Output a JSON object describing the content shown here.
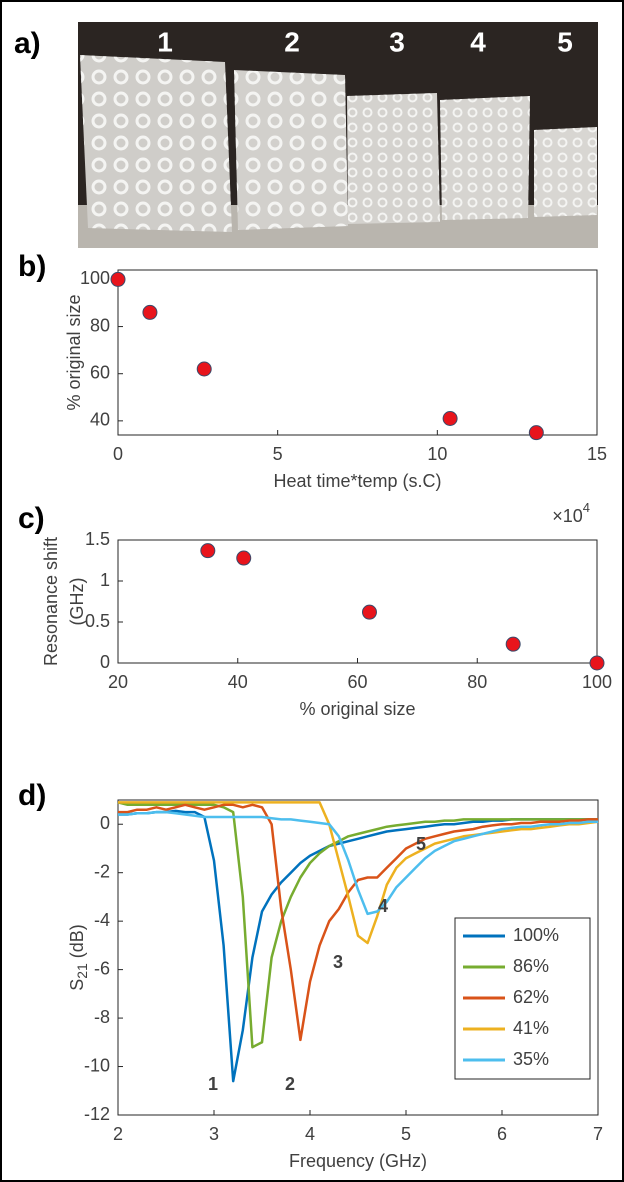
{
  "panel_labels": [
    "a)",
    "b)",
    "c)",
    "d)"
  ],
  "photo_labels": [
    "1",
    "2",
    "3",
    "4",
    "5"
  ],
  "chart_data": [
    {
      "type": "scatter",
      "xlabel": "Heat time*temp (s.C)",
      "ylabel": "% original size",
      "x_multiplier": "×10",
      "x_multiplier_exp": "4",
      "x": [
        0,
        1.0,
        2.7,
        10.4,
        13.1
      ],
      "values": [
        100,
        86,
        62,
        41,
        35
      ],
      "color": "#e8141c",
      "edge_color": "#3a4a6a",
      "xlim": [
        0,
        15
      ],
      "xticks": [
        0,
        5,
        10,
        15
      ],
      "ylim": [
        34,
        104
      ],
      "yticks": [
        40,
        60,
        80,
        100
      ]
    },
    {
      "type": "scatter",
      "xlabel": "% original size",
      "ylabel_lines": [
        "Resonance shift",
        "(GHz)"
      ],
      "x": [
        35,
        41,
        62,
        86,
        100
      ],
      "values": [
        1.37,
        1.28,
        0.62,
        0.23,
        0
      ],
      "color": "#e8141c",
      "edge_color": "#3a4a6a",
      "xlim": [
        20,
        100
      ],
      "xticks": [
        20,
        40,
        60,
        80,
        100
      ],
      "ylim": [
        0,
        1.5
      ],
      "yticks": [
        0,
        0.5,
        1,
        1.5
      ]
    },
    {
      "type": "line",
      "xlabel": "Frequency (GHz)",
      "ylabel_parts": [
        "S",
        "21",
        " (dB)"
      ],
      "x": [
        2,
        2.1,
        2.2,
        2.3,
        2.4,
        2.5,
        2.6,
        2.7,
        2.8,
        2.9,
        3,
        3.1,
        3.2,
        3.3,
        3.4,
        3.5,
        3.6,
        3.7,
        3.8,
        3.9,
        4,
        4.1,
        4.2,
        4.3,
        4.4,
        4.5,
        4.6,
        4.7,
        4.8,
        4.9,
        5,
        5.1,
        5.2,
        5.3,
        5.4,
        5.5,
        5.6,
        5.7,
        5.8,
        5.9,
        6,
        6.1,
        6.2,
        6.3,
        6.4,
        6.5,
        6.6,
        6.7,
        6.8,
        6.9,
        7
      ],
      "series": [
        {
          "name": "100%",
          "color": "#0072bd",
          "values": [
            0.4,
            0.4,
            0.45,
            0.45,
            0.5,
            0.5,
            0.55,
            0.5,
            0.5,
            0.3,
            -1.5,
            -5,
            -10.6,
            -8.5,
            -5.5,
            -3.6,
            -2.9,
            -2.4,
            -2,
            -1.6,
            -1.3,
            -1.1,
            -0.9,
            -0.8,
            -0.7,
            -0.6,
            -0.5,
            -0.4,
            -0.3,
            -0.25,
            -0.2,
            -0.15,
            -0.1,
            -0.05,
            0,
            0,
            0.05,
            0.1,
            0.1,
            0.15,
            0.15,
            0.2,
            0.2,
            0.2,
            0.2,
            0.2,
            0.2,
            0.2,
            0.2,
            0.2,
            0.2
          ]
        },
        {
          "name": "86%",
          "color": "#77ac30",
          "values": [
            0.9,
            0.8,
            0.8,
            0.8,
            0.8,
            0.8,
            0.8,
            0.8,
            0.8,
            0.8,
            0.8,
            0.7,
            0.5,
            -3,
            -9.2,
            -9,
            -5.5,
            -4,
            -3,
            -2.2,
            -1.6,
            -1.2,
            -0.9,
            -0.7,
            -0.5,
            -0.4,
            -0.3,
            -0.2,
            -0.1,
            -0.05,
            0,
            0.05,
            0.1,
            0.1,
            0.15,
            0.15,
            0.2,
            0.2,
            0.2,
            0.2,
            0.2,
            0.2,
            0.2,
            0.2,
            0.2,
            0.2,
            0.2,
            0.2,
            0.2,
            0.2,
            0.2
          ]
        },
        {
          "name": "62%",
          "color": "#d95319",
          "values": [
            0.5,
            0.5,
            0.6,
            0.6,
            0.7,
            0.6,
            0.7,
            0.8,
            0.7,
            0.6,
            0.7,
            0.8,
            0.8,
            0.7,
            0.8,
            0.7,
            0,
            -3.5,
            -6,
            -8.9,
            -6.5,
            -5,
            -4,
            -3.5,
            -2.8,
            -2.3,
            -2.2,
            -2.2,
            -1.8,
            -1.4,
            -1,
            -0.8,
            -0.6,
            -0.5,
            -0.4,
            -0.3,
            -0.25,
            -0.2,
            -0.1,
            -0.05,
            0,
            0,
            0.05,
            0.05,
            0.1,
            0.1,
            0.1,
            0.15,
            0.15,
            0.2,
            0.2
          ]
        },
        {
          "name": "41%",
          "color": "#edb120",
          "values": [
            0.9,
            0.9,
            0.9,
            0.9,
            0.9,
            0.9,
            0.9,
            0.9,
            0.9,
            0.9,
            0.9,
            0.9,
            0.9,
            0.9,
            0.9,
            0.9,
            0.9,
            0.9,
            0.9,
            0.9,
            0.9,
            0.9,
            0,
            -1.5,
            -3,
            -4.6,
            -4.9,
            -3.8,
            -2.5,
            -1.8,
            -1.4,
            -1.2,
            -1,
            -0.8,
            -0.7,
            -0.6,
            -0.5,
            -0.45,
            -0.4,
            -0.35,
            -0.3,
            -0.25,
            -0.2,
            -0.2,
            -0.15,
            -0.1,
            -0.05,
            0,
            0,
            0.05,
            0.1
          ]
        },
        {
          "name": "35%",
          "color": "#4dbeee",
          "values": [
            0.4,
            0.4,
            0.45,
            0.45,
            0.5,
            0.5,
            0.45,
            0.4,
            0.35,
            0.3,
            0.3,
            0.3,
            0.3,
            0.3,
            0.3,
            0.3,
            0.25,
            0.2,
            0.2,
            0.15,
            0.1,
            0.05,
            0,
            -0.5,
            -1.5,
            -2.7,
            -3.7,
            -3.6,
            -3.2,
            -2.6,
            -2.2,
            -1.8,
            -1.4,
            -1.1,
            -0.9,
            -0.7,
            -0.6,
            -0.5,
            -0.4,
            -0.3,
            -0.2,
            -0.15,
            -0.1,
            -0.1,
            -0.05,
            0,
            0,
            0.05,
            0.05,
            0.1,
            0.1
          ]
        }
      ],
      "annotations": [
        {
          "text": "1",
          "color": "#0072bd"
        },
        {
          "text": "2",
          "color": "#2ca02c"
        },
        {
          "text": "3",
          "color": "#d95319"
        },
        {
          "text": "4",
          "color": "#edb120"
        },
        {
          "text": "5",
          "color": "#4dbeee"
        }
      ],
      "legend": "right",
      "xlim": [
        2,
        7
      ],
      "xticks": [
        2,
        3,
        4,
        5,
        6,
        7
      ],
      "ylim": [
        -12,
        1
      ],
      "yticks": [
        -12,
        -10,
        -8,
        -6,
        -4,
        -2,
        0
      ]
    }
  ]
}
